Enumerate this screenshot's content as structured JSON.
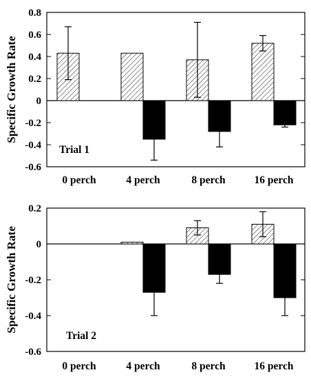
{
  "chart_data": [
    {
      "type": "bar",
      "ylabel": "Specific Growth Rate",
      "annotation": "Trial 1",
      "ylim": [
        -0.6,
        0.8
      ],
      "yticks": [
        -0.6,
        -0.4,
        -0.2,
        0,
        0.2,
        0.4,
        0.6,
        0.8
      ],
      "ytick_labels": [
        "-0.6",
        "-0.4",
        "-0.2",
        "0",
        "0.2",
        "0.4",
        "0.6",
        "0.8"
      ],
      "categories": [
        "0 perch",
        "4 perch",
        "8 perch",
        "16 perch"
      ],
      "series": [
        {
          "style": "hatched",
          "values": [
            0.43,
            0.43,
            0.37,
            0.52
          ],
          "errors": [
            0.24,
            null,
            0.34,
            0.07
          ]
        },
        {
          "style": "black",
          "values": [
            null,
            -0.35,
            -0.28,
            -0.22
          ],
          "errors": [
            null,
            0.19,
            0.14,
            0.02
          ]
        }
      ],
      "grid": false,
      "legend": "none"
    },
    {
      "type": "bar",
      "ylabel": "Specific Growth Rate",
      "annotation": "Trial 2",
      "ylim": [
        -0.6,
        0.2
      ],
      "yticks": [
        -0.6,
        -0.4,
        -0.2,
        0,
        0.2
      ],
      "ytick_labels": [
        "-0.6",
        "-0.4",
        "-0.2",
        "0",
        "0.2"
      ],
      "categories": [
        "0 perch",
        "4 perch",
        "8 perch",
        "16 perch"
      ],
      "series": [
        {
          "style": "hatched",
          "values": [
            null,
            0.01,
            0.09,
            0.11
          ],
          "errors": [
            null,
            null,
            0.04,
            0.07
          ]
        },
        {
          "style": "black",
          "values": [
            null,
            -0.27,
            -0.17,
            -0.3
          ],
          "errors": [
            null,
            0.13,
            0.05,
            0.1
          ]
        }
      ],
      "grid": false,
      "legend": "none"
    }
  ]
}
